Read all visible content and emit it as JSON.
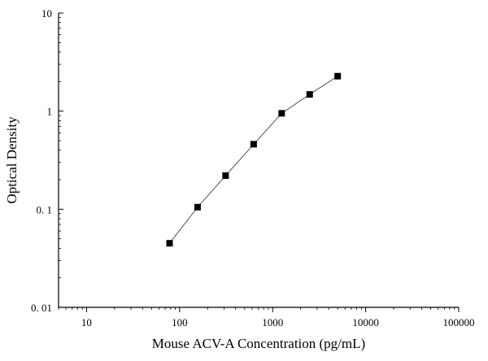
{
  "chart_data": {
    "type": "scatter",
    "xlabel": "Mouse ACV-A Concentration (pg/mL)",
    "ylabel": "Optical Density",
    "x_scale": "log",
    "y_scale": "log",
    "xlim": [
      5,
      100000
    ],
    "ylim": [
      0.01,
      10
    ],
    "x_ticks": [
      {
        "value": 10,
        "label": "10"
      },
      {
        "value": 100,
        "label": "100"
      },
      {
        "value": 1000,
        "label": "1000"
      },
      {
        "value": 10000,
        "label": "10000"
      },
      {
        "value": 100000,
        "label": "100000"
      }
    ],
    "y_ticks": [
      {
        "value": 0.01,
        "label": "0. 01"
      },
      {
        "value": 0.1,
        "label": "0. 1"
      },
      {
        "value": 1,
        "label": "1"
      },
      {
        "value": 10,
        "label": "10"
      }
    ],
    "grid": false,
    "series": [
      {
        "marker": "square",
        "line": true,
        "color": "#000000",
        "line_color": "#555555",
        "x": [
          78,
          156,
          312,
          625,
          1250,
          2500,
          5000
        ],
        "y": [
          0.045,
          0.105,
          0.22,
          0.46,
          0.95,
          1.48,
          2.27
        ]
      }
    ]
  }
}
